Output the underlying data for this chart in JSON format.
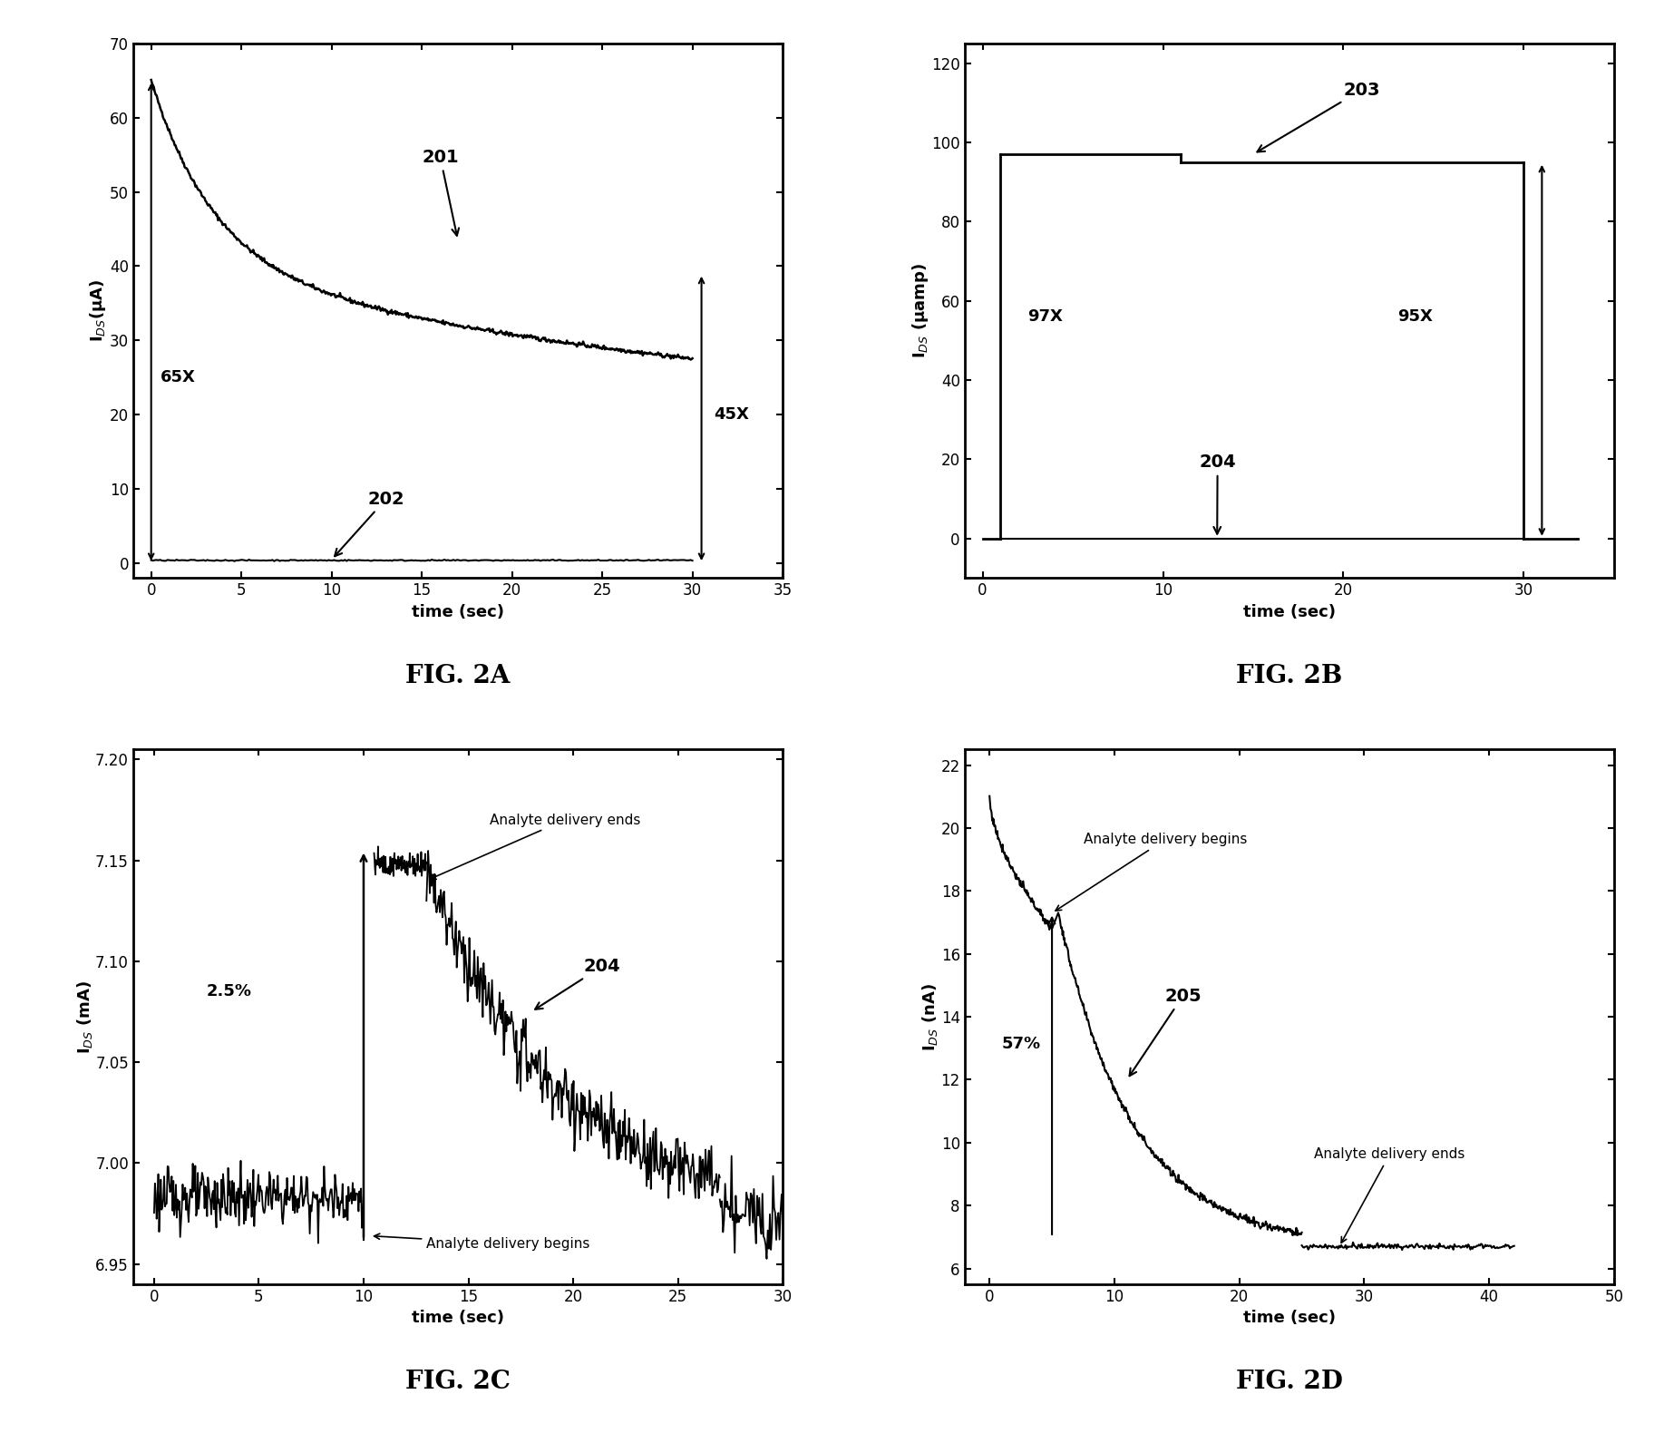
{
  "fig2a": {
    "title": "FIG. 2A",
    "xlabel": "time (sec)",
    "ylabel": "I$_{DS}$(μA)",
    "xlim": [
      -1,
      35
    ],
    "ylim": [
      -2,
      70
    ],
    "xticks": [
      0,
      5,
      10,
      15,
      20,
      25,
      30,
      35
    ],
    "yticks": [
      0,
      10,
      20,
      30,
      40,
      50,
      60,
      70
    ],
    "label201": "201",
    "label202": "202",
    "label65x": "65X",
    "label45x": "45X"
  },
  "fig2b": {
    "title": "FIG. 2B",
    "xlabel": "time (sec)",
    "ylabel": "I$_{DS}$ (μamp)",
    "xlim": [
      -1,
      35
    ],
    "ylim": [
      -10,
      125
    ],
    "xticks": [
      0,
      10,
      20,
      30
    ],
    "yticks": [
      0,
      20,
      40,
      60,
      80,
      100,
      120
    ],
    "label203": "203",
    "label204": "204",
    "label97x": "97X",
    "label95x": "95X"
  },
  "fig2c": {
    "title": "FIG. 2C",
    "xlabel": "time (sec)",
    "ylabel": "I$_{DS}$ (mA)",
    "xlim": [
      -1,
      30
    ],
    "ylim": [
      6.94,
      7.205
    ],
    "xticks": [
      0,
      5,
      10,
      15,
      20,
      25,
      30
    ],
    "yticks": [
      6.95,
      7.0,
      7.05,
      7.1,
      7.15,
      7.2
    ],
    "label204": "204",
    "label25pct": "2.5%",
    "ann_begins": "Analyte delivery begins",
    "ann_ends": "Analyte delivery ends"
  },
  "fig2d": {
    "title": "FIG. 2D",
    "xlabel": "time (sec)",
    "ylabel": "I$_{DS}$ (nA)",
    "xlim": [
      -2,
      50
    ],
    "ylim": [
      5.5,
      22.5
    ],
    "xticks": [
      0,
      10,
      20,
      30,
      40,
      50
    ],
    "yticks": [
      6,
      8,
      10,
      12,
      14,
      16,
      18,
      20,
      22
    ],
    "label205": "205",
    "label57pct": "57%",
    "ann_begins": "Analyte delivery begins",
    "ann_ends": "Analyte delivery ends"
  },
  "background_color": "#ffffff",
  "line_color": "#000000"
}
